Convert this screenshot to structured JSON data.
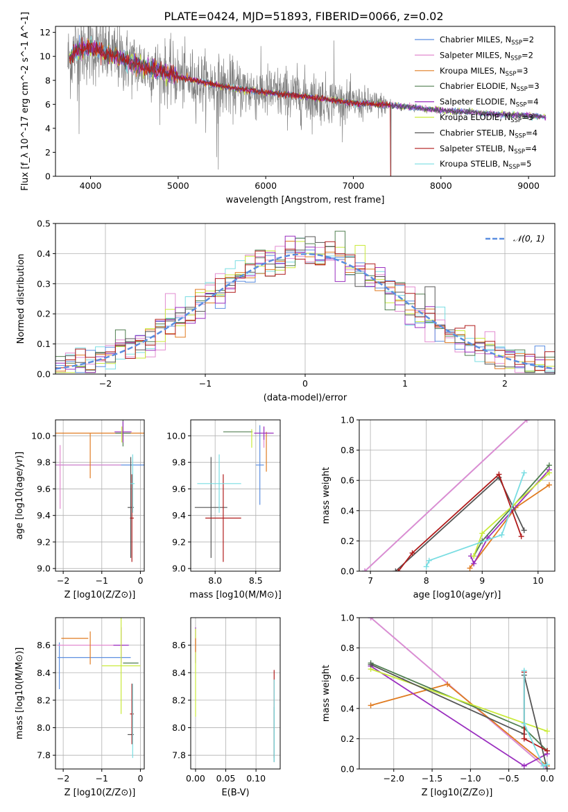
{
  "figure_title": "PLATE=0424, MJD=51893, FIBERID=0066, z=0.02",
  "models": [
    {
      "name": "Chabrier MILES, N_SSP=2",
      "label": "Chabrier MILES, N",
      "sub": "SSP",
      "tail": "=2",
      "color": "#5b8ee0"
    },
    {
      "name": "Salpeter MILES, N_SSP=2",
      "label": "Salpeter MILES, N",
      "sub": "SSP",
      "tail": "=2",
      "color": "#e28bd0"
    },
    {
      "name": "Kroupa MILES, N_SSP=3",
      "label": "Kroupa MILES, N",
      "sub": "SSP",
      "tail": "=3",
      "color": "#e07b20"
    },
    {
      "name": "Chabrier ELODIE, N_SSP=3",
      "label": "Chabrier ELODIE, N",
      "sub": "SSP",
      "tail": "=3",
      "color": "#507f50"
    },
    {
      "name": "Salpeter ELODIE, N_SSP=4",
      "label": "Salpeter ELODIE, N",
      "sub": "SSP",
      "tail": "=4",
      "color": "#9a2fbf"
    },
    {
      "name": "Kroupa ELODIE, N_SSP=3",
      "label": "Kroupa ELODIE, N",
      "sub": "SSP",
      "tail": "=3",
      "color": "#c9ea3a"
    },
    {
      "name": "Chabrier STELIB, N_SSP=4",
      "label": "Chabrier STELIB, N",
      "sub": "SSP",
      "tail": "=4",
      "color": "#555555"
    },
    {
      "name": "Salpeter STELIB, N_SSP=4",
      "label": "Salpeter STELIB, N",
      "sub": "SSP",
      "tail": "=4",
      "color": "#b01a1a"
    },
    {
      "name": "Kroupa STELIB, N_SSP=5",
      "label": "Kroupa STELIB, N",
      "sub": "SSP",
      "tail": "=5",
      "color": "#79dde2"
    }
  ],
  "chart_data": [
    {
      "id": "spectrum",
      "type": "line",
      "xlabel": "wavelength [Angstrom, rest frame]",
      "ylabel": "Flux [f_λ 10^-17 erg cm^-2 s^-1 A^-1]",
      "xlim": [
        3600,
        9300
      ],
      "ylim": [
        0,
        12.5
      ],
      "xticks": [
        4000,
        5000,
        6000,
        7000,
        8000,
        9000
      ],
      "yticks": [
        0,
        2,
        4,
        6,
        8,
        10,
        12
      ],
      "grid": false,
      "legend_position": "top-right",
      "continuum": [
        [
          3750,
          9.6
        ],
        [
          3820,
          10.4
        ],
        [
          3900,
          10.6
        ],
        [
          4000,
          10.8
        ],
        [
          4200,
          10.2
        ],
        [
          4500,
          9.4
        ],
        [
          5000,
          8.3
        ],
        [
          5500,
          7.5
        ],
        [
          6000,
          7.0
        ],
        [
          6500,
          6.6
        ],
        [
          7000,
          6.1
        ],
        [
          7400,
          5.95
        ],
        [
          7600,
          5.8
        ],
        [
          8000,
          5.5
        ],
        [
          8500,
          5.25
        ],
        [
          9000,
          5.05
        ],
        [
          9200,
          4.95
        ]
      ],
      "data_noise_amplitude": [
        [
          3750,
          3.0
        ],
        [
          4500,
          2.4
        ],
        [
          5500,
          2.2
        ],
        [
          6500,
          2.0
        ],
        [
          7300,
          1.0
        ],
        [
          7500,
          0.25
        ],
        [
          9200,
          0.2
        ]
      ],
      "spikes": [
        [
          3810,
          0
        ],
        [
          3870,
          -7
        ],
        [
          5440,
          -6
        ],
        [
          5460,
          -7
        ],
        [
          6780,
          5
        ],
        [
          7430,
          -6
        ]
      ]
    },
    {
      "id": "residuals",
      "type": "histogram",
      "xlabel": "(data-model)/error",
      "ylabel": "Normed distribution",
      "xlim": [
        -2.5,
        2.5
      ],
      "ylim": [
        0,
        0.5
      ],
      "xticks": [
        -2,
        -1,
        0,
        1,
        2
      ],
      "xtick_labels": [
        "−2",
        "−1",
        "0",
        "1",
        "2"
      ],
      "yticks": [
        0.0,
        0.1,
        0.2,
        0.3,
        0.4,
        0.5
      ],
      "grid": true,
      "legend_position": "top-right",
      "reference": {
        "name": "𝒩(0, 1)",
        "mean": 0,
        "sigma": 1,
        "color": "#5b8ee0"
      },
      "bin_width": 0.1
    },
    {
      "id": "age_vs_Z",
      "type": "errorbar",
      "xlabel": "Z [log10(Z/Z⊙)]",
      "ylabel": "age  [log10(age/yr)]",
      "xlim": [
        -2.2,
        0.1
      ],
      "ylim": [
        8.98,
        10.12
      ],
      "xticks": [
        -2,
        -1,
        0
      ],
      "xtick_labels": [
        "−2",
        "−1",
        "0"
      ],
      "yticks": [
        9.0,
        9.2,
        9.4,
        9.6,
        9.8,
        10.0
      ],
      "grid": true,
      "points": [
        {
          "model": 0,
          "x": -0.95,
          "xerr": 1.25,
          "y": 9.78,
          "yerr": 0.0
        },
        {
          "model": 1,
          "x": -1.35,
          "xerr": 0.85,
          "y": 9.78,
          "yerr": 0.0
        },
        {
          "model": 1,
          "x": -2.08,
          "xerr": 0.0,
          "y": 9.69,
          "yerr": 0.24
        },
        {
          "model": 2,
          "x": -1.05,
          "xerr": 1.15,
          "y": 10.02,
          "yerr": 0.0
        },
        {
          "model": 2,
          "x": -1.3,
          "xerr": 0.0,
          "y": 9.85,
          "yerr": 0.17
        },
        {
          "model": 3,
          "x": -0.45,
          "xerr": 0.2,
          "y": 10.02,
          "yerr": 0.1
        },
        {
          "model": 4,
          "x": -0.45,
          "xerr": 0.22,
          "y": 10.03,
          "yerr": 0.08
        },
        {
          "model": 5,
          "x": -0.48,
          "xerr": 0.0,
          "y": 10.01,
          "yerr": 0.06
        },
        {
          "model": 6,
          "x": -0.25,
          "xerr": 0.08,
          "y": 9.46,
          "yerr": 0.38
        },
        {
          "model": 7,
          "x": -0.22,
          "xerr": 0.05,
          "y": 9.38,
          "yerr": 0.33
        },
        {
          "model": 8,
          "x": -0.2,
          "xerr": 0.05,
          "y": 9.64,
          "yerr": 0.22
        }
      ]
    },
    {
      "id": "age_vs_mass",
      "type": "errorbar",
      "xlabel": "mass [log10(M/M⊙)]",
      "ylabel": "",
      "xlim": [
        7.7,
        8.8
      ],
      "ylim": [
        8.98,
        10.12
      ],
      "xticks": [
        8.0,
        8.5
      ],
      "xtick_labels": [
        "8.0",
        "8.5"
      ],
      "yticks": [
        9.0,
        9.2,
        9.4,
        9.6,
        9.8,
        10.0
      ],
      "grid": true,
      "points": [
        {
          "model": 0,
          "x": 8.55,
          "xerr": 0.05,
          "y": 9.78,
          "yerr": 0.3
        },
        {
          "model": 1,
          "x": 8.6,
          "xerr": 0.0,
          "y": 9.99,
          "yerr": 0.08
        },
        {
          "model": 2,
          "x": 8.63,
          "xerr": 0.0,
          "y": 9.88,
          "yerr": 0.15
        },
        {
          "model": 3,
          "x": 8.28,
          "xerr": 0.18,
          "y": 10.03,
          "yerr": 0.0
        },
        {
          "model": 4,
          "x": 8.6,
          "xerr": 0.12,
          "y": 10.02,
          "yerr": 0.05
        },
        {
          "model": 5,
          "x": 8.45,
          "xerr": 0.0,
          "y": 9.98,
          "yerr": 0.07
        },
        {
          "model": 6,
          "x": 7.95,
          "xerr": 0.2,
          "y": 9.46,
          "yerr": 0.38
        },
        {
          "model": 7,
          "x": 8.1,
          "xerr": 0.22,
          "y": 9.38,
          "yerr": 0.33
        },
        {
          "model": 8,
          "x": 8.05,
          "xerr": 0.27,
          "y": 9.64,
          "yerr": 0.22
        }
      ]
    },
    {
      "id": "massweight_vs_age",
      "type": "line",
      "xlabel": "age  [log10(age/yr)]",
      "ylabel": "mass weight",
      "xlim": [
        6.8,
        10.3
      ],
      "ylim": [
        0,
        1.0
      ],
      "xticks": [
        7,
        8,
        9,
        10
      ],
      "xtick_labels": [
        "7",
        "8",
        "9",
        "10"
      ],
      "yticks": [
        0.0,
        0.2,
        0.4,
        0.6,
        0.8,
        1.0
      ],
      "grid": true,
      "series": [
        {
          "model": 0,
          "x": [
            6.9,
            9.8
          ],
          "y": [
            0.0,
            1.0
          ]
        },
        {
          "model": 1,
          "x": [
            6.9,
            9.8
          ],
          "y": [
            0.0,
            1.0
          ]
        },
        {
          "model": 2,
          "x": [
            8.78,
            9.6,
            10.2
          ],
          "y": [
            0.02,
            0.42,
            0.57
          ]
        },
        {
          "model": 3,
          "x": [
            8.85,
            9.0,
            10.2
          ],
          "y": [
            0.1,
            0.2,
            0.7
          ]
        },
        {
          "model": 4,
          "x": [
            8.8,
            8.85,
            9.1,
            10.2
          ],
          "y": [
            0.1,
            0.05,
            0.22,
            0.67
          ]
        },
        {
          "model": 5,
          "x": [
            8.85,
            9.0,
            10.2
          ],
          "y": [
            0.1,
            0.25,
            0.65
          ]
        },
        {
          "model": 6,
          "x": [
            7.45,
            9.3,
            9.75
          ],
          "y": [
            0.0,
            0.62,
            0.27
          ]
        },
        {
          "model": 7,
          "x": [
            7.5,
            7.75,
            9.3,
            9.7
          ],
          "y": [
            0.0,
            0.12,
            0.64,
            0.23
          ]
        },
        {
          "model": 8,
          "x": [
            8.0,
            8.05,
            9.35,
            9.75
          ],
          "y": [
            0.03,
            0.07,
            0.24,
            0.65
          ]
        }
      ]
    },
    {
      "id": "mass_vs_Z",
      "type": "errorbar",
      "xlabel": "Z [log10(Z/Z⊙)]",
      "ylabel": "mass [log10(M/M⊙)]",
      "xlim": [
        -2.2,
        0.1
      ],
      "ylim": [
        7.7,
        8.8
      ],
      "xticks": [
        -2,
        -1,
        0
      ],
      "xtick_labels": [
        "−2",
        "−1",
        "0"
      ],
      "yticks": [
        7.8,
        8.0,
        8.2,
        8.4,
        8.6
      ],
      "grid": true,
      "points": [
        {
          "model": 0,
          "x": -1.2,
          "xerr": 0.95,
          "y": 8.51,
          "yerr": 0.0
        },
        {
          "model": 0,
          "x": -2.1,
          "xerr": 0.0,
          "y": 8.45,
          "yerr": 0.17
        },
        {
          "model": 1,
          "x": -1.3,
          "xerr": 0.85,
          "y": 8.6,
          "yerr": 0.0
        },
        {
          "model": 2,
          "x": -1.3,
          "xerr": 0.0,
          "y": 8.58,
          "yerr": 0.12
        },
        {
          "model": 2,
          "x": -1.7,
          "xerr": 0.35,
          "y": 8.65,
          "yerr": 0.0
        },
        {
          "model": 3,
          "x": -0.25,
          "xerr": 0.2,
          "y": 8.47,
          "yerr": 0.0
        },
        {
          "model": 4,
          "x": -0.5,
          "xerr": 0.2,
          "y": 8.6,
          "yerr": 0.13
        },
        {
          "model": 5,
          "x": -0.5,
          "xerr": 0.5,
          "y": 8.45,
          "yerr": 0.35
        },
        {
          "model": 6,
          "x": -0.25,
          "xerr": 0.08,
          "y": 7.95,
          "yerr": 0.0
        },
        {
          "model": 7,
          "x": -0.22,
          "xerr": 0.05,
          "y": 8.1,
          "yerr": 0.22
        },
        {
          "model": 8,
          "x": -0.2,
          "xerr": 0.0,
          "y": 8.05,
          "yerr": 0.27
        }
      ]
    },
    {
      "id": "mass_vs_ebv",
      "type": "errorbar",
      "xlabel": "E(B-V)",
      "ylabel": "",
      "xlim": [
        -0.008,
        0.14
      ],
      "ylim": [
        7.7,
        8.8
      ],
      "xticks": [
        0.0,
        0.05,
        0.1
      ],
      "xtick_labels": [
        "0.00",
        "0.05",
        "0.10"
      ],
      "yticks": [
        7.8,
        8.0,
        8.2,
        8.4,
        8.6
      ],
      "grid": true,
      "points": [
        {
          "model": 4,
          "x": 0.0,
          "xerr": 0.0,
          "y": 8.6,
          "yerr": 0.13
        },
        {
          "model": 5,
          "x": 0.0,
          "xerr": 0.0,
          "y": 8.4,
          "yerr": 0.32
        },
        {
          "model": 2,
          "x": 0.0,
          "xerr": 0.0,
          "y": 8.6,
          "yerr": 0.05
        },
        {
          "model": 7,
          "x": 0.13,
          "xerr": 0.0,
          "y": 8.1,
          "yerr": 0.32
        },
        {
          "model": 6,
          "x": 0.13,
          "xerr": 0.0,
          "y": 7.95,
          "yerr": 0.2
        },
        {
          "model": 8,
          "x": 0.13,
          "xerr": 0.0,
          "y": 8.05,
          "yerr": 0.3
        }
      ]
    },
    {
      "id": "massweight_vs_Z",
      "type": "line",
      "xlabel": "Z [log10(Z/Z⊙)]",
      "ylabel": "mass weight",
      "xlim": [
        -2.45,
        0.1
      ],
      "ylim": [
        0,
        1.0
      ],
      "xticks": [
        -2.0,
        -1.5,
        -1.0,
        -0.5,
        0.0
      ],
      "xtick_labels": [
        "−2.0",
        "−1.5",
        "−1.0",
        "−0.5",
        "0.0"
      ],
      "yticks": [
        0.0,
        0.2,
        0.4,
        0.6,
        0.8,
        1.0
      ],
      "grid": true,
      "series": [
        {
          "model": 0,
          "x": [
            -2.3,
            0.0
          ],
          "y": [
            1.0,
            0.0
          ]
        },
        {
          "model": 1,
          "x": [
            -2.3,
            0.0
          ],
          "y": [
            1.0,
            0.0
          ]
        },
        {
          "model": 2,
          "x": [
            -2.3,
            -1.3,
            0.0
          ],
          "y": [
            0.42,
            0.56,
            0.02
          ]
        },
        {
          "model": 3,
          "x": [
            -2.3,
            -0.3,
            0.0
          ],
          "y": [
            0.7,
            0.27,
            0.12
          ]
        },
        {
          "model": 4,
          "x": [
            -2.3,
            -0.3,
            0.0
          ],
          "y": [
            0.68,
            0.02,
            0.1
          ]
        },
        {
          "model": 5,
          "x": [
            -2.3,
            0.0
          ],
          "y": [
            0.66,
            0.25
          ]
        },
        {
          "model": 6,
          "x": [
            -2.3,
            -0.3,
            -0.3,
            0.0
          ],
          "y": [
            0.69,
            0.23,
            0.62,
            0.0
          ]
        },
        {
          "model": 7,
          "x": [
            -0.3,
            -0.3,
            0.0
          ],
          "y": [
            0.64,
            0.2,
            0.12
          ]
        },
        {
          "model": 8,
          "x": [
            -0.3,
            -0.3,
            -0.05,
            0.0
          ],
          "y": [
            0.65,
            0.3,
            0.02,
            0.03
          ]
        }
      ]
    }
  ]
}
